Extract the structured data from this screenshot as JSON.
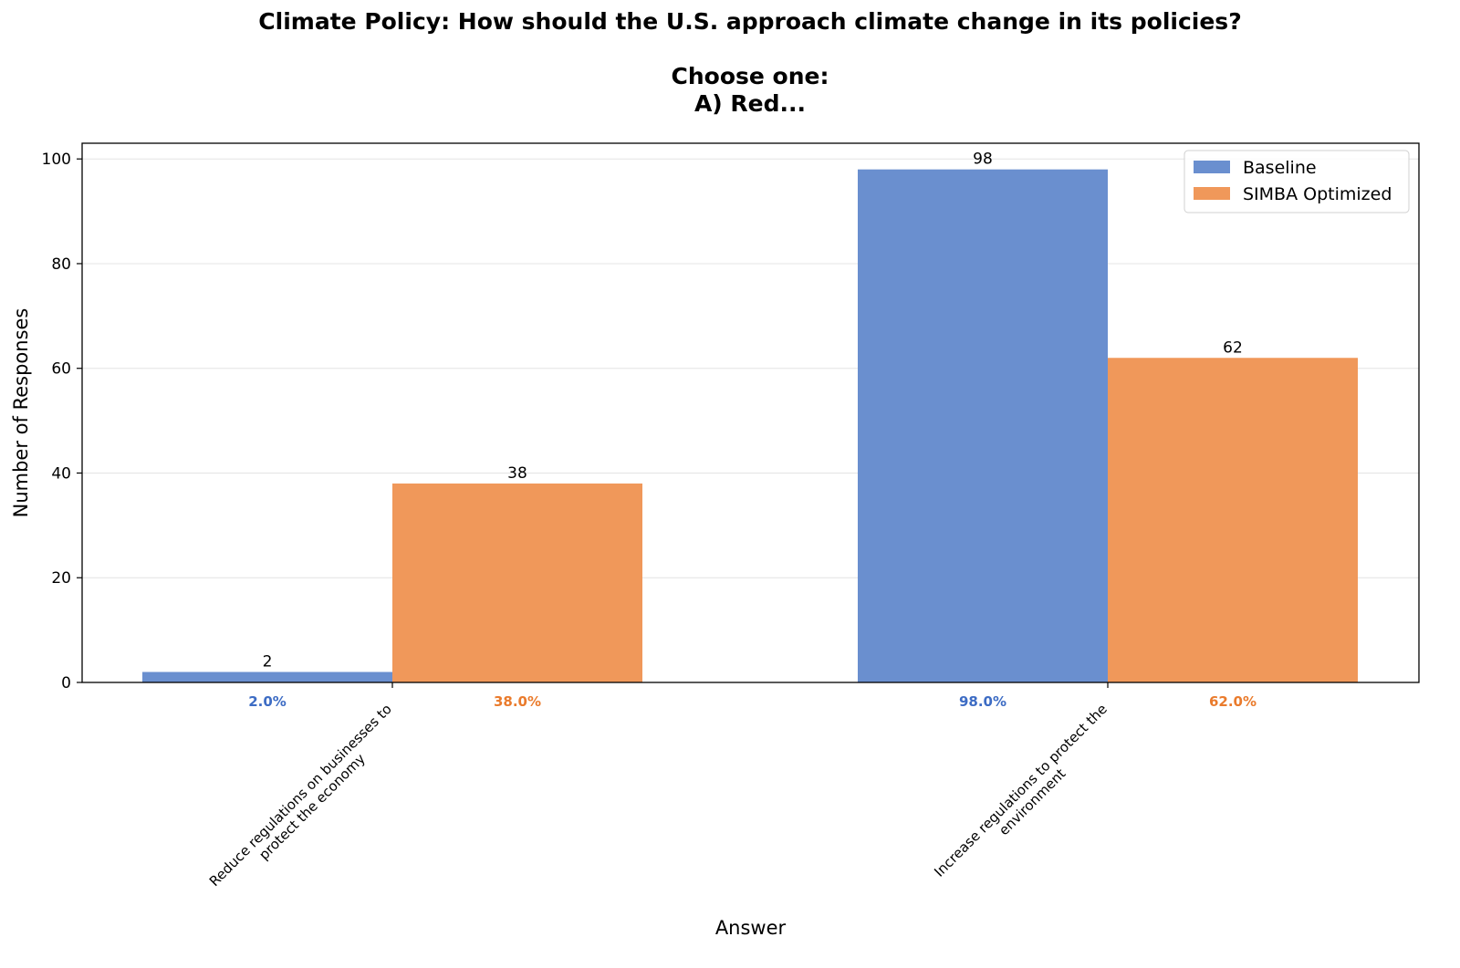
{
  "chart_data": {
    "type": "bar",
    "title_lines": [
      "Climate Policy: How should the U.S. approach climate change in its policies?",
      "",
      "Choose one:",
      "A) Red..."
    ],
    "xlabel": "Answer",
    "ylabel": "Number of Responses",
    "ylim": [
      0,
      103
    ],
    "yticks": [
      0,
      20,
      40,
      60,
      80,
      100
    ],
    "grid": "y",
    "legend_position": "top-right",
    "categories": [
      [
        "Reduce regulations on businesses to",
        "protect the economy"
      ],
      [
        "Increase regulations to protect the",
        "environment"
      ]
    ],
    "series": [
      {
        "name": "Baseline",
        "color": "#6a8fcf",
        "pct_color": "#3d6cc4",
        "values": [
          2,
          98
        ],
        "value_labels": [
          "2",
          "98"
        ],
        "pct_labels": [
          "2.0%",
          "98.0%"
        ]
      },
      {
        "name": "SIMBA Optimized",
        "color": "#f0985a",
        "pct_color": "#ea7b2c",
        "values": [
          38,
          62
        ],
        "value_labels": [
          "38",
          "62"
        ],
        "pct_labels": [
          "38.0%",
          "62.0%"
        ]
      }
    ]
  }
}
